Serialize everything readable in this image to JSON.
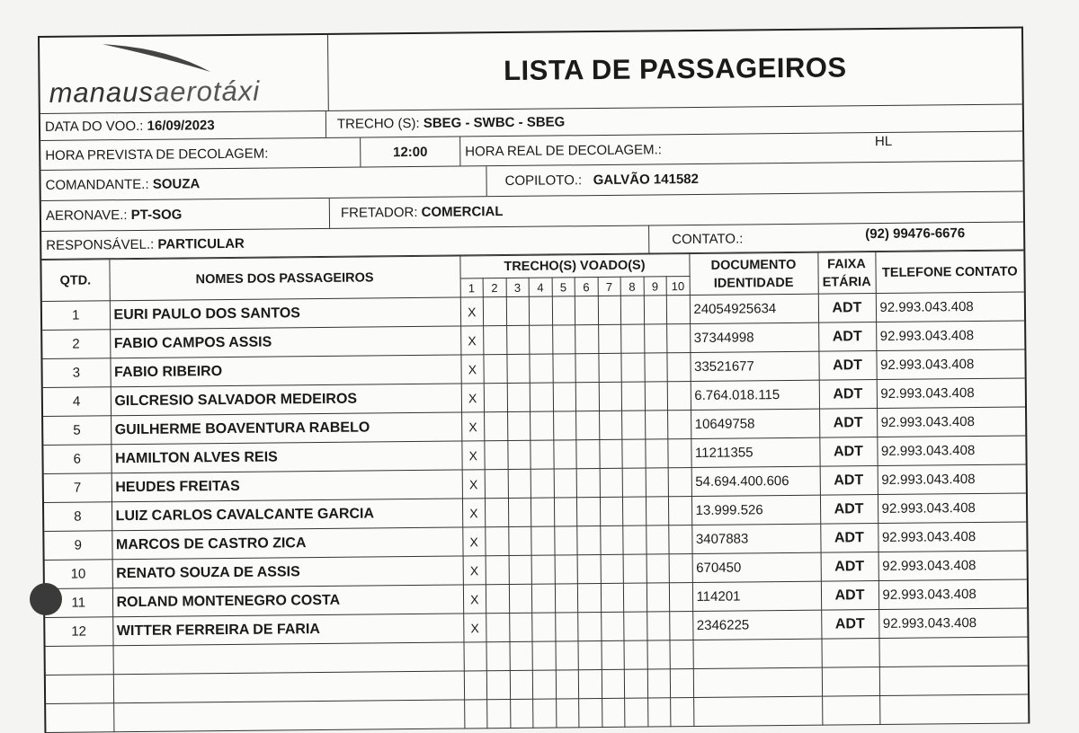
{
  "header": {
    "logo_text": "manausaerotáxi",
    "title": "LISTA DE PASSAGEIROS"
  },
  "flight": {
    "date_label": "DATA DO VOO.:",
    "date": "16/09/2023",
    "route_label": "TRECHO (S):",
    "route": "SBEG - SWBC - SBEG",
    "planned_label": "HORA PREVISTA DE DECOLAGEM:",
    "planned": "12:00",
    "actual_label": "HORA REAL DE DECOLAGEM.:",
    "actual": "HL",
    "captain_label": "COMANDANTE.:",
    "captain": "SOUZA",
    "copilot_label": "COPILOTO.:",
    "copilot": "GALVÃO 141582",
    "aircraft_label": "AERONAVE.:",
    "aircraft": "PT-SOG",
    "charterer_label": "FRETADOR:",
    "charterer": "COMERCIAL",
    "responsible_label": "RESPONSÁVEL.:",
    "responsible": "PARTICULAR",
    "contact_label": "CONTATO.:",
    "contact": "(92) 99476-6676"
  },
  "table": {
    "headers": {
      "qty": "QTD.",
      "names": "NOMES DOS PASSAGEIROS",
      "legs": "TRECHO(S) VOADO(S)",
      "leg_numbers": [
        "1",
        "2",
        "3",
        "4",
        "5",
        "6",
        "7",
        "8",
        "9",
        "10"
      ],
      "doc": "DOCUMENTO IDENTIDADE",
      "age": "FAIXA ETÁRIA",
      "phone": "TELEFONE CONTATO"
    },
    "rows": [
      {
        "n": "1",
        "name": "EURI PAULO DOS SANTOS",
        "leg1": "X",
        "doc": "24054925634",
        "age": "ADT",
        "phone": "92.993.043.408"
      },
      {
        "n": "2",
        "name": "FABIO CAMPOS ASSIS",
        "leg1": "X",
        "doc": "37344998",
        "age": "ADT",
        "phone": "92.993.043.408"
      },
      {
        "n": "3",
        "name": "FABIO RIBEIRO",
        "leg1": "X",
        "doc": "33521677",
        "age": "ADT",
        "phone": "92.993.043.408"
      },
      {
        "n": "4",
        "name": "GILCRESIO SALVADOR MEDEIROS",
        "leg1": "X",
        "doc": "6.764.018.115",
        "age": "ADT",
        "phone": "92.993.043.408"
      },
      {
        "n": "5",
        "name": "GUILHERME BOAVENTURA RABELO",
        "leg1": "X",
        "doc": "10649758",
        "age": "ADT",
        "phone": "92.993.043.408"
      },
      {
        "n": "6",
        "name": "HAMILTON ALVES REIS",
        "leg1": "X",
        "doc": "11211355",
        "age": "ADT",
        "phone": "92.993.043.408"
      },
      {
        "n": "7",
        "name": "HEUDES FREITAS",
        "leg1": "X",
        "doc": "54.694.400.606",
        "age": "ADT",
        "phone": "92.993.043.408"
      },
      {
        "n": "8",
        "name": "LUIZ CARLOS CAVALCANTE GARCIA",
        "leg1": "X",
        "doc": "13.999.526",
        "age": "ADT",
        "phone": "92.993.043.408"
      },
      {
        "n": "9",
        "name": "MARCOS DE CASTRO ZICA",
        "leg1": "X",
        "doc": "3407883",
        "age": "ADT",
        "phone": "92.993.043.408"
      },
      {
        "n": "10",
        "name": "RENATO SOUZA DE ASSIS",
        "leg1": "X",
        "doc": "670450",
        "age": "ADT",
        "phone": "92.993.043.408"
      },
      {
        "n": "11",
        "name": "ROLAND MONTENEGRO COSTA",
        "leg1": "X",
        "doc": "114201",
        "age": "ADT",
        "phone": "92.993.043.408"
      },
      {
        "n": "12",
        "name": "WITTER FERREIRA DE FARIA",
        "leg1": "X",
        "doc": "2346225",
        "age": "ADT",
        "phone": "92.993.043.408"
      }
    ]
  }
}
